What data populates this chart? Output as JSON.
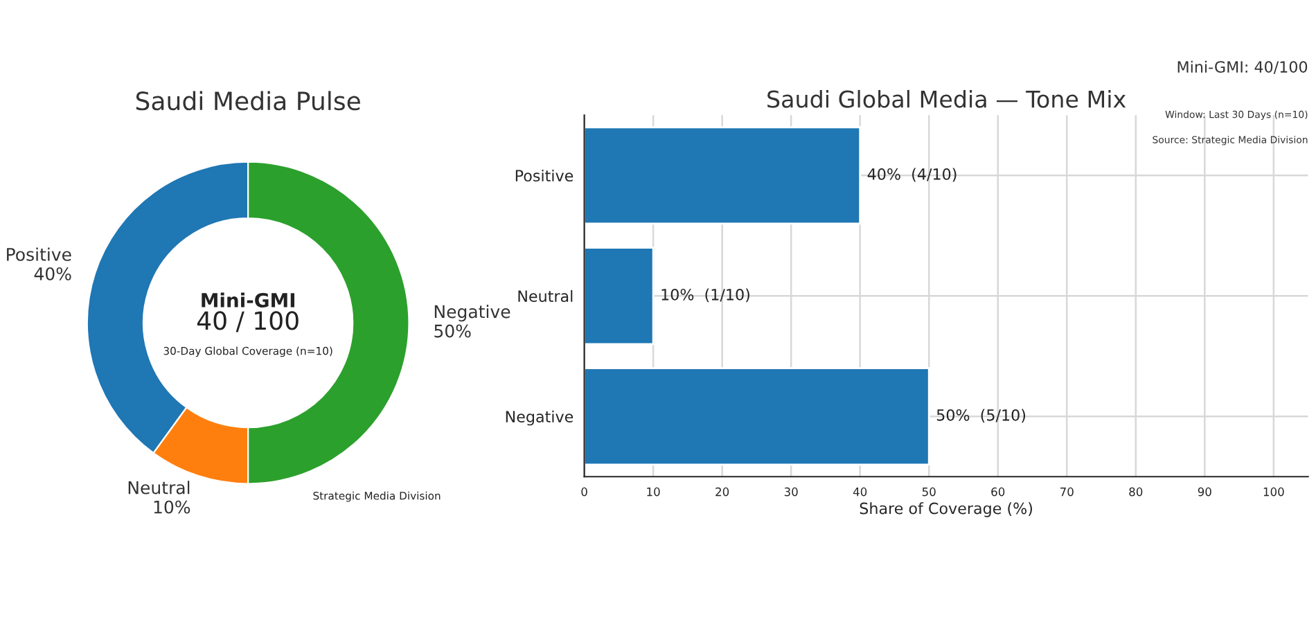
{
  "chart_data": [
    {
      "type": "donut",
      "title": "Saudi Media Pulse",
      "categories": [
        "Positive",
        "Neutral",
        "Negative"
      ],
      "values": [
        40,
        10,
        50
      ],
      "colors": [
        "#1f77b4",
        "#ff7f0e",
        "#2ca02c"
      ],
      "value_labels": [
        "40%",
        "10%",
        "50%"
      ],
      "annotations": [
        "Mini-GMI",
        "40 / 100",
        "30-Day Global Coverage (n=10)",
        "Strategic Media Division"
      ]
    },
    {
      "type": "bar",
      "orientation": "horizontal",
      "title": "Saudi Global Media — Tone Mix",
      "xlabel": "Share of Coverage (%)",
      "categories": [
        "Positive",
        "Neutral",
        "Negative"
      ],
      "values": [
        40,
        10,
        50
      ],
      "color": "#1f77b4",
      "value_labels": [
        "40%  (4/10)",
        "10%  (1/10)",
        "50%  (5/10)"
      ],
      "xlim": [
        0,
        105
      ],
      "xticks": [
        0,
        10,
        20,
        30,
        40,
        50,
        60,
        70,
        80,
        90,
        100
      ],
      "grid": true,
      "annotations": [
        "Mini-GMI: 40/100",
        "Window: Last 30 Days (n=10)",
        "Source: Strategic Media Division"
      ]
    }
  ]
}
